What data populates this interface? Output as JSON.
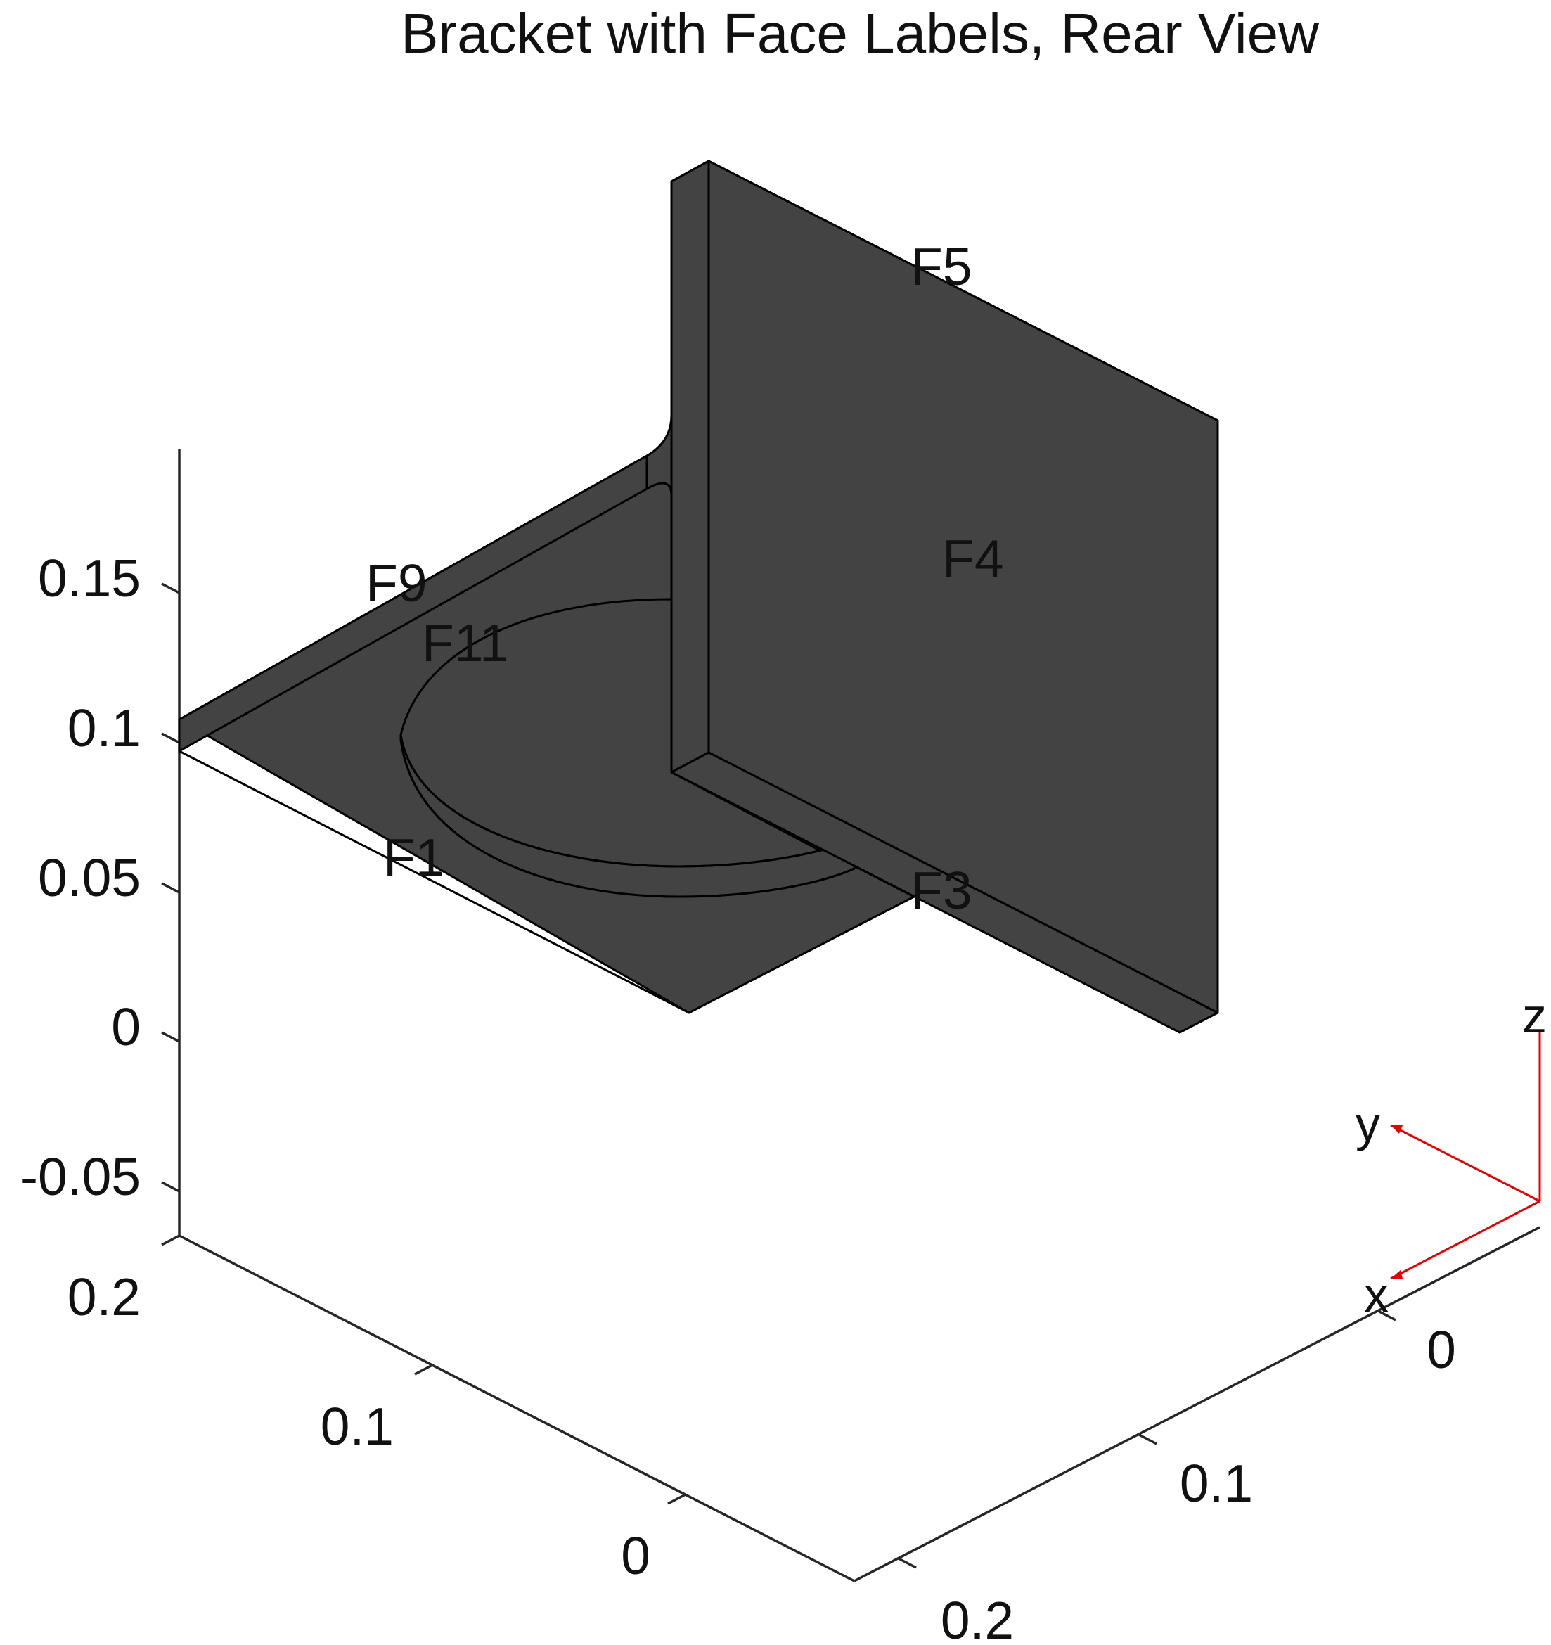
{
  "title": "Bracket with Face Labels, Rear View",
  "colors": {
    "solid_face": "#434343",
    "edge": "#000000",
    "axis": "#262626",
    "triad": "#e60000",
    "background": "#ffffff"
  },
  "z_axis": {
    "ticks": [
      "0.15",
      "0.1",
      "0.05",
      "0",
      "-0.05"
    ]
  },
  "left_axis": {
    "ticks": [
      "0.2",
      "0.1",
      "0"
    ]
  },
  "right_axis": {
    "ticks": [
      "0",
      "0.1",
      "0.2"
    ]
  },
  "face_labels": [
    "F5",
    "F4",
    "F9",
    "F11",
    "F3",
    "F1"
  ],
  "triad": {
    "x_label": "x",
    "y_label": "y",
    "z_label": "z"
  }
}
